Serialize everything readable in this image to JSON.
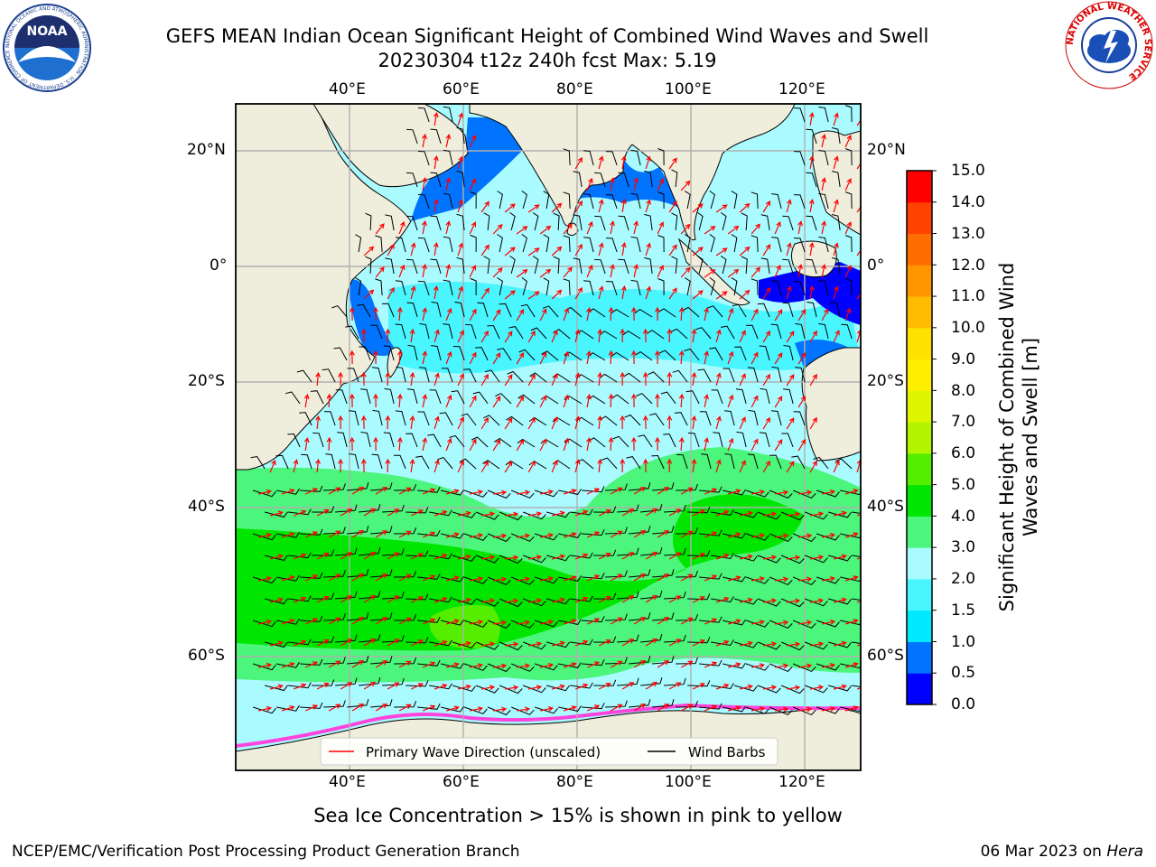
{
  "header": {
    "title_line1": "GEFS MEAN Indian Ocean Significant Height of Combined Wind Waves and Swell",
    "title_line2": "20230304 t12z 240h fcst   Max: 5.19"
  },
  "logos": {
    "noaa_text": "NOAA",
    "nws_text": "NATIONAL WEATHER SERVICE",
    "noaa_ring_text": "NATIONAL OCEANIC AND ATMOSPHERIC ADMINISTRATION · U.S. DEPARTMENT OF COMMERCE"
  },
  "map": {
    "lon_labels_top": [
      "40°E",
      "60°E",
      "80°E",
      "100°E",
      "120°E"
    ],
    "lon_labels_bottom": [
      "40°E",
      "60°E",
      "80°E",
      "100°E",
      "120°E"
    ],
    "lat_labels_left": [
      "20°N",
      "0°",
      "20°S",
      "40°S",
      "60°S"
    ],
    "lat_labels_right": [
      "20°N",
      "0°",
      "20°S",
      "40°S",
      "60°S"
    ],
    "legend": {
      "wave_direction": "Primary Wave Direction (unscaled)",
      "wind_barbs": "Wind Barbs"
    },
    "colors": {
      "land": "#efeddc",
      "wave_arrow": "#ff0000",
      "wind_barb": "#000000"
    }
  },
  "colorbar": {
    "label": "Significant Height of Combined Wind Waves and Swell [m]",
    "ticks": [
      "0.0",
      "0.5",
      "1.0",
      "1.5",
      "2.0",
      "3.0",
      "4.0",
      "5.0",
      "6.0",
      "7.0",
      "8.0",
      "9.0",
      "10.0",
      "11.0",
      "12.0",
      "13.0",
      "14.0",
      "15.0"
    ],
    "colors": [
      "#0000ff",
      "#0073ff",
      "#00e9ff",
      "#49f5ff",
      "#a9fbff",
      "#4cf57b",
      "#00e600",
      "#55ee00",
      "#b3f500",
      "#ddf500",
      "#ffee00",
      "#ffe100",
      "#ffbb00",
      "#ff9600",
      "#ff6d00",
      "#ff4200",
      "#ff0000"
    ]
  },
  "footer": {
    "sea_ice_note": "Sea Ice Concentration > 15% is shown in pink to yellow",
    "credit": "NCEP/EMC/Verification Post Processing Product Generation Branch",
    "date_prefix": "06 Mar 2023 on ",
    "date_host": "Hera"
  }
}
